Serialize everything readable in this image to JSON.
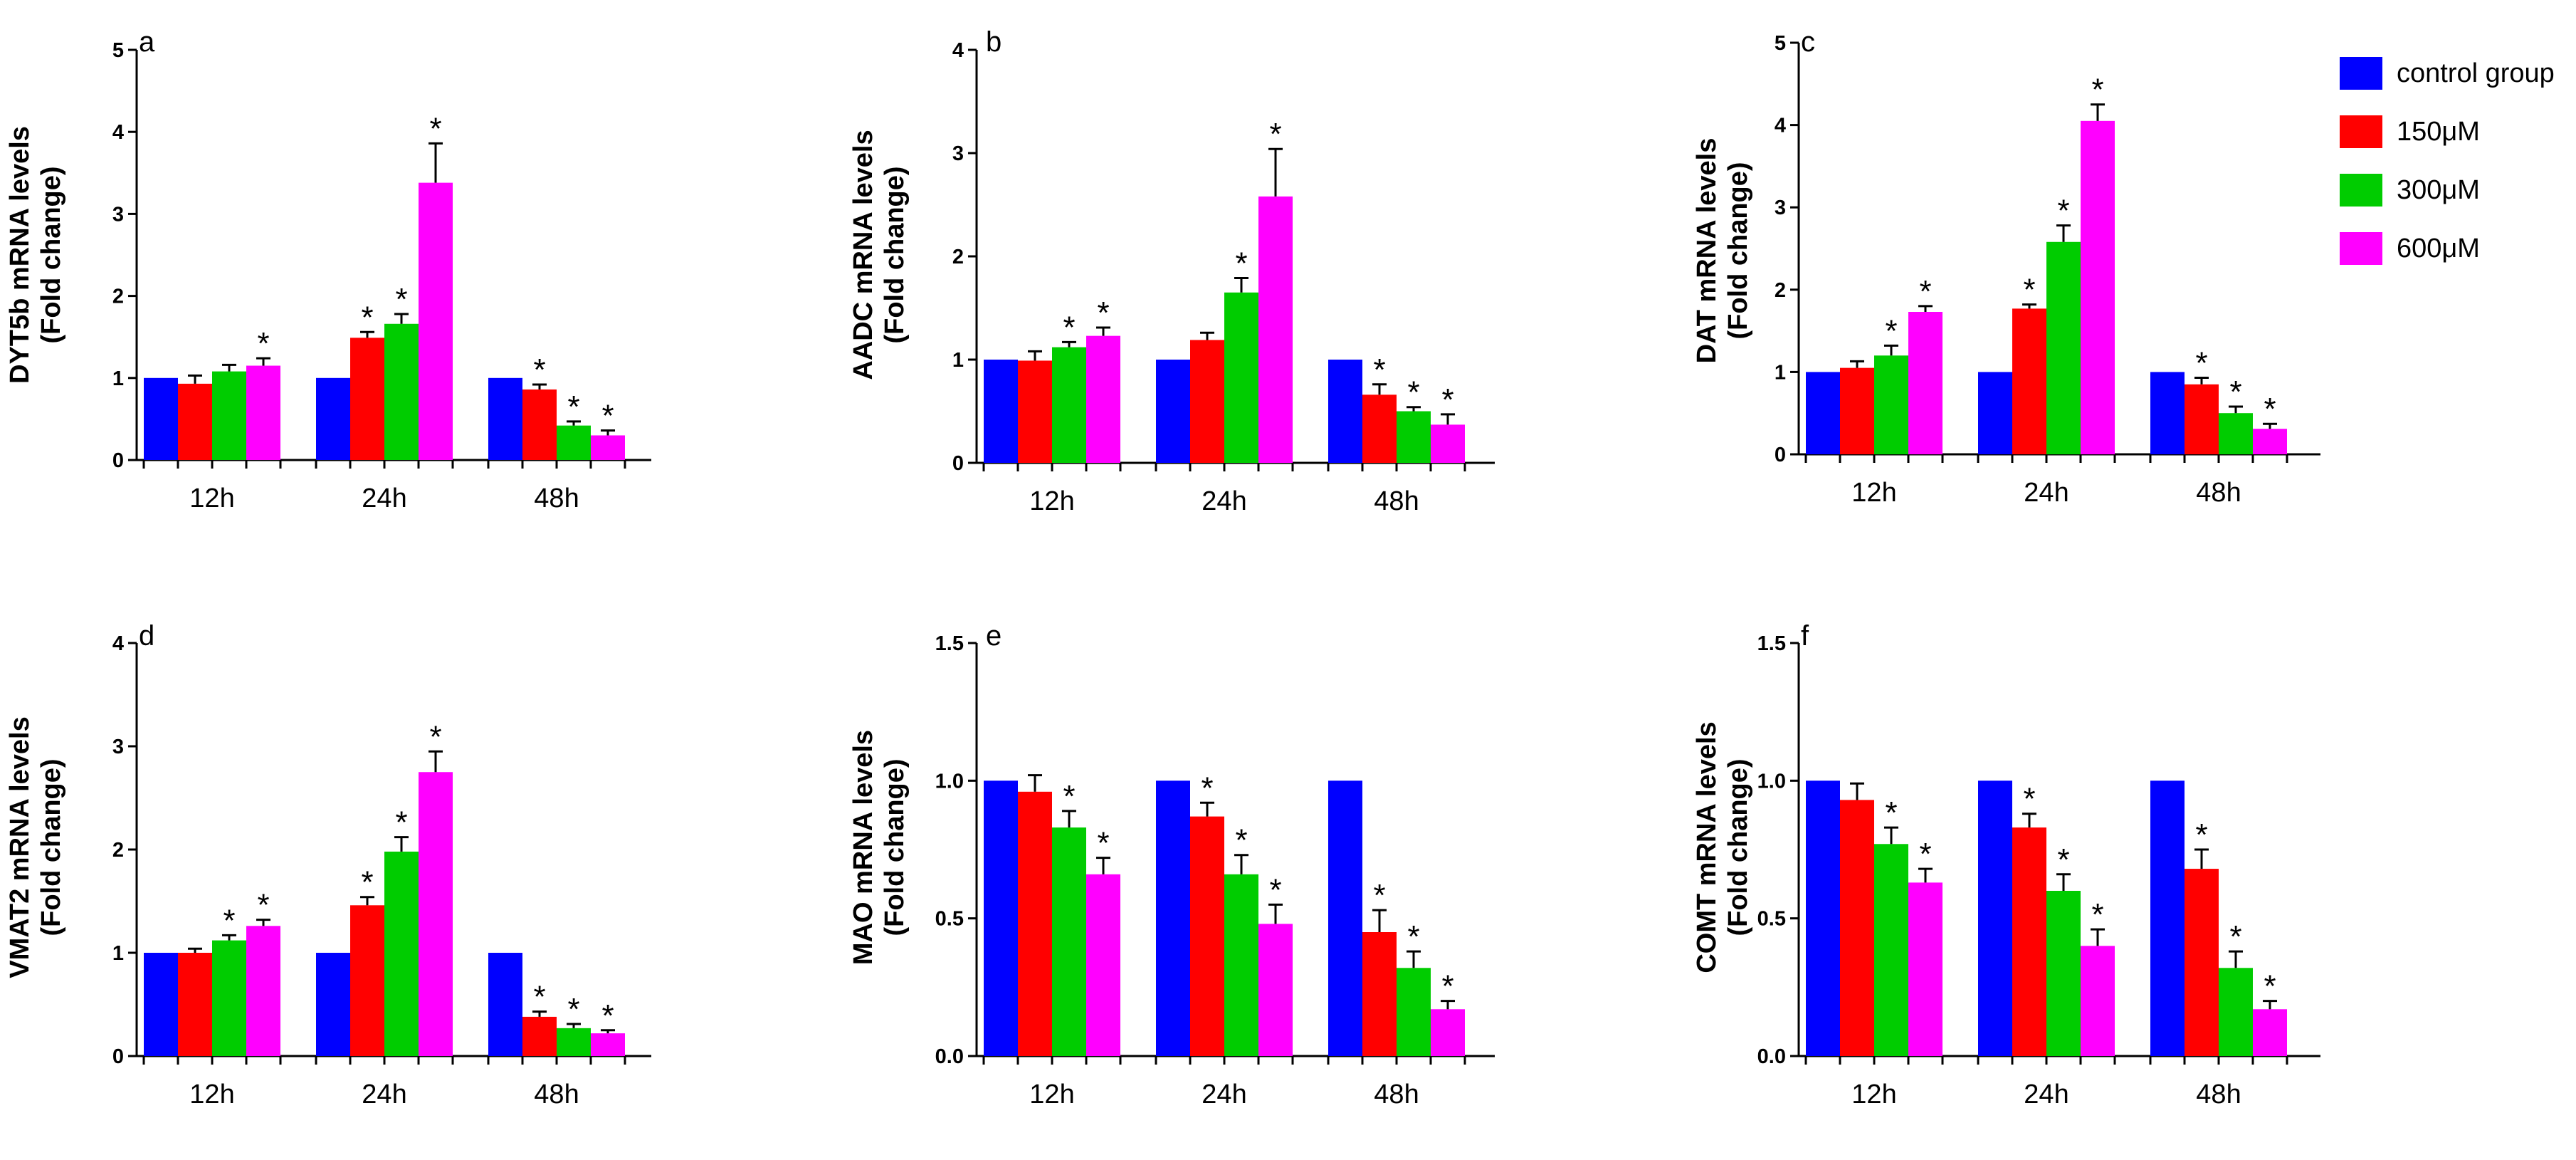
{
  "chart_data": [
    {
      "type": "bar",
      "panel": "a",
      "ylabel": [
        "DYT5b mRNA levels",
        "(Fold change)"
      ],
      "ylim": [
        0,
        5
      ],
      "ytick_labels": [
        "0",
        "1",
        "2",
        "3",
        "4",
        "5"
      ],
      "categories": [
        "12h",
        "24h",
        "48h"
      ],
      "series": [
        {
          "name": "control group",
          "values": [
            1.0,
            1.0,
            1.0
          ],
          "errors": [
            0,
            0,
            0
          ],
          "sig": [
            false,
            false,
            false
          ]
        },
        {
          "name": "150μM",
          "values": [
            0.93,
            1.49,
            0.86
          ],
          "errors": [
            0.1,
            0.07,
            0.06
          ],
          "sig": [
            false,
            true,
            true
          ]
        },
        {
          "name": "300μM",
          "values": [
            1.08,
            1.66,
            0.42
          ],
          "errors": [
            0.08,
            0.12,
            0.05
          ],
          "sig": [
            false,
            true,
            true
          ]
        },
        {
          "name": "600μM",
          "values": [
            1.15,
            3.38,
            0.3
          ],
          "errors": [
            0.09,
            0.48,
            0.06
          ],
          "sig": [
            true,
            true,
            true
          ]
        }
      ]
    },
    {
      "type": "bar",
      "panel": "b",
      "ylabel": [
        "AADC mRNA levels",
        "(Fold change)"
      ],
      "ylim": [
        0,
        4
      ],
      "ytick_labels": [
        "0",
        "1",
        "2",
        "3",
        "4"
      ],
      "categories": [
        "12h",
        "24h",
        "48h"
      ],
      "series": [
        {
          "name": "control group",
          "values": [
            1.0,
            1.0,
            1.0
          ],
          "errors": [
            0,
            0,
            0
          ],
          "sig": [
            false,
            false,
            false
          ]
        },
        {
          "name": "150μM",
          "values": [
            0.99,
            1.19,
            0.66
          ],
          "errors": [
            0.09,
            0.07,
            0.1
          ],
          "sig": [
            false,
            false,
            true
          ]
        },
        {
          "name": "300μM",
          "values": [
            1.12,
            1.65,
            0.5
          ],
          "errors": [
            0.05,
            0.14,
            0.04
          ],
          "sig": [
            true,
            true,
            true
          ]
        },
        {
          "name": "600μM",
          "values": [
            1.23,
            2.58,
            0.37
          ],
          "errors": [
            0.08,
            0.46,
            0.1
          ],
          "sig": [
            true,
            true,
            true
          ]
        }
      ]
    },
    {
      "type": "bar",
      "panel": "c",
      "ylabel": [
        "DAT mRNA levels",
        "(Fold change)"
      ],
      "ylim": [
        0,
        5
      ],
      "ytick_labels": [
        "0",
        "1",
        "2",
        "3",
        "4",
        "5"
      ],
      "categories": [
        "12h",
        "24h",
        "48h"
      ],
      "series": [
        {
          "name": "control group",
          "values": [
            1.0,
            1.0,
            1.0
          ],
          "errors": [
            0,
            0,
            0
          ],
          "sig": [
            false,
            false,
            false
          ]
        },
        {
          "name": "150μM",
          "values": [
            1.05,
            1.77,
            0.85
          ],
          "errors": [
            0.08,
            0.05,
            0.08
          ],
          "sig": [
            false,
            true,
            true
          ]
        },
        {
          "name": "300μM",
          "values": [
            1.2,
            2.58,
            0.5
          ],
          "errors": [
            0.12,
            0.2,
            0.08
          ],
          "sig": [
            true,
            true,
            true
          ]
        },
        {
          "name": "600μM",
          "values": [
            1.73,
            4.05,
            0.31
          ],
          "errors": [
            0.07,
            0.2,
            0.06
          ],
          "sig": [
            true,
            true,
            true
          ]
        }
      ]
    },
    {
      "type": "bar",
      "panel": "d",
      "ylabel": [
        "VMAT2 mRNA levels",
        "(Fold change)"
      ],
      "ylim": [
        0,
        4
      ],
      "ytick_labels": [
        "0",
        "1",
        "2",
        "3",
        "4"
      ],
      "categories": [
        "12h",
        "24h",
        "48h"
      ],
      "series": [
        {
          "name": "control group",
          "values": [
            1.0,
            1.0,
            1.0
          ],
          "errors": [
            0,
            0,
            0
          ],
          "sig": [
            false,
            false,
            false
          ]
        },
        {
          "name": "150μM",
          "values": [
            1.0,
            1.46,
            0.38
          ],
          "errors": [
            0.04,
            0.08,
            0.05
          ],
          "sig": [
            false,
            true,
            true
          ]
        },
        {
          "name": "300μM",
          "values": [
            1.12,
            1.98,
            0.27
          ],
          "errors": [
            0.05,
            0.14,
            0.04
          ],
          "sig": [
            true,
            true,
            true
          ]
        },
        {
          "name": "600μM",
          "values": [
            1.26,
            2.75,
            0.22
          ],
          "errors": [
            0.06,
            0.2,
            0.03
          ],
          "sig": [
            true,
            true,
            true
          ]
        }
      ]
    },
    {
      "type": "bar",
      "panel": "e",
      "ylabel": [
        "MAO mRNA levels",
        "(Fold change)"
      ],
      "ylim": [
        0,
        1.5
      ],
      "ytick_labels": [
        "0.0",
        "0.5",
        "1.0",
        "1.5"
      ],
      "categories": [
        "12h",
        "24h",
        "48h"
      ],
      "series": [
        {
          "name": "control group",
          "values": [
            1.0,
            1.0,
            1.0
          ],
          "errors": [
            0,
            0,
            0
          ],
          "sig": [
            false,
            false,
            false
          ]
        },
        {
          "name": "150μM",
          "values": [
            0.96,
            0.87,
            0.45
          ],
          "errors": [
            0.06,
            0.05,
            0.08
          ],
          "sig": [
            false,
            true,
            true
          ]
        },
        {
          "name": "300μM",
          "values": [
            0.83,
            0.66,
            0.32
          ],
          "errors": [
            0.06,
            0.07,
            0.06
          ],
          "sig": [
            true,
            true,
            true
          ]
        },
        {
          "name": "600μM",
          "values": [
            0.66,
            0.48,
            0.17
          ],
          "errors": [
            0.06,
            0.07,
            0.03
          ],
          "sig": [
            true,
            true,
            true
          ]
        }
      ]
    },
    {
      "type": "bar",
      "panel": "f",
      "ylabel": [
        "COMT mRNA levels",
        "(Fold change)"
      ],
      "ylim": [
        0,
        1.5
      ],
      "ytick_labels": [
        "0.0",
        "0.5",
        "1.0",
        "1.5"
      ],
      "categories": [
        "12h",
        "24h",
        "48h"
      ],
      "series": [
        {
          "name": "control group",
          "values": [
            1.0,
            1.0,
            1.0
          ],
          "errors": [
            0,
            0,
            0
          ],
          "sig": [
            false,
            false,
            false
          ]
        },
        {
          "name": "150μM",
          "values": [
            0.93,
            0.83,
            0.68
          ],
          "errors": [
            0.06,
            0.05,
            0.07
          ],
          "sig": [
            false,
            true,
            true
          ]
        },
        {
          "name": "300μM",
          "values": [
            0.77,
            0.6,
            0.32
          ],
          "errors": [
            0.06,
            0.06,
            0.06
          ],
          "sig": [
            true,
            true,
            true
          ]
        },
        {
          "name": "600μM",
          "values": [
            0.63,
            0.4,
            0.17
          ],
          "errors": [
            0.05,
            0.06,
            0.03
          ],
          "sig": [
            true,
            true,
            true
          ]
        }
      ]
    }
  ],
  "legend": {
    "entries": [
      "control group",
      "150μM",
      "300μM",
      "600μM"
    ]
  },
  "significance_marker": "*",
  "colors": {
    "control group": "#0000ff",
    "150μM": "#ff0000",
    "300μM": "#00cc00",
    "600μM": "#ff00ff",
    "axis": "#000000"
  }
}
